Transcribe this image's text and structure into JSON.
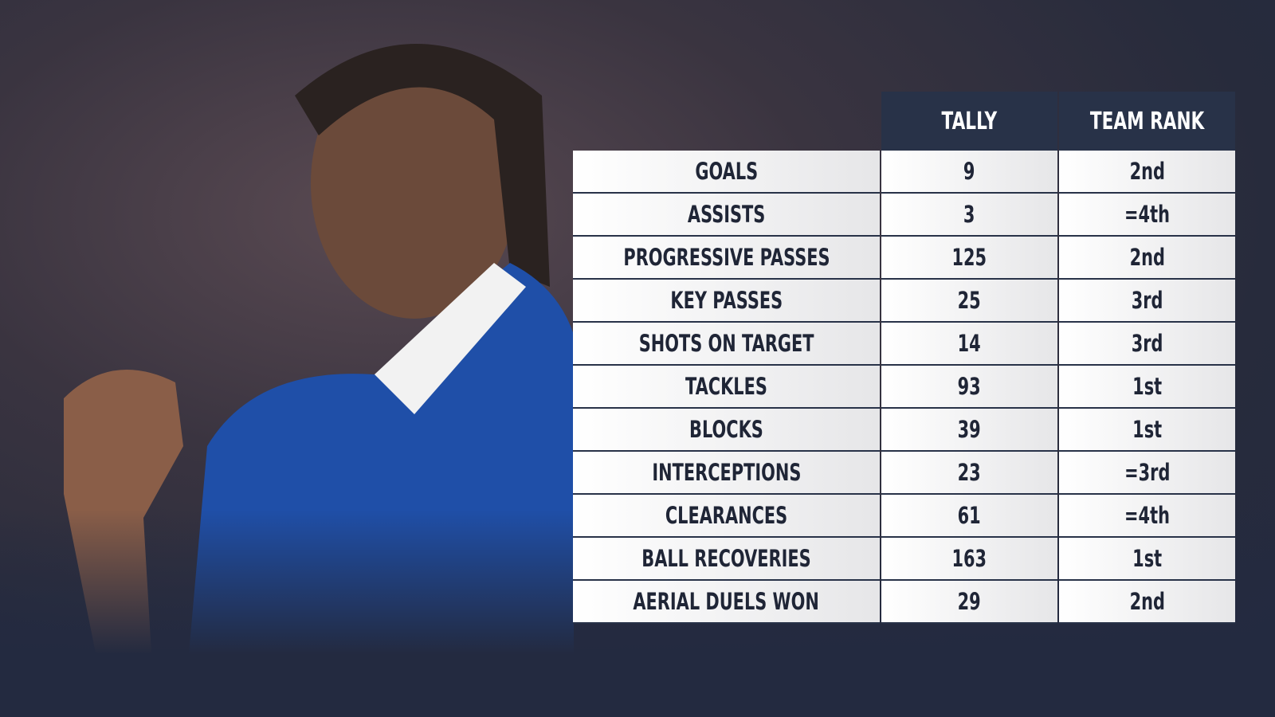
{
  "table": {
    "columns": [
      "TALLY",
      "TEAM RANK"
    ],
    "rows": [
      [
        "GOALS",
        9,
        "2nd"
      ],
      [
        "ASSISTS",
        3,
        "=4th"
      ],
      [
        "PROGRESSIVE PASSES",
        125,
        "2nd"
      ],
      [
        "KEY PASSES",
        25,
        "3rd"
      ],
      [
        "SHOTS ON TARGET",
        14,
        "3rd"
      ],
      [
        "TACKLES",
        93,
        "1st"
      ],
      [
        "BLOCKS",
        39,
        "1st"
      ],
      [
        "INTERCEPTIONS",
        23,
        "=3rd"
      ],
      [
        "CLEARANCES",
        61,
        "=4th"
      ],
      [
        "BALL RECOVERIES",
        163,
        "1st"
      ],
      [
        "AERIAL DUELS WON",
        29,
        "2nd"
      ]
    ]
  }
}
